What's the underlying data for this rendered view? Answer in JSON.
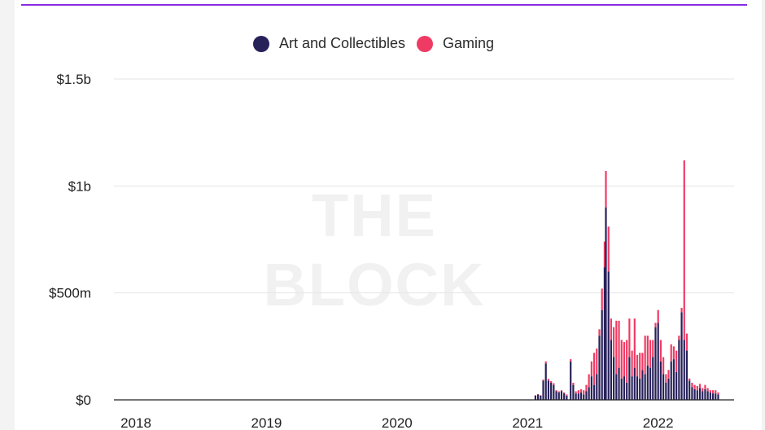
{
  "colors": {
    "accent_rule": "#8a2be2",
    "art": "#27215a",
    "gaming": "#ef3b64",
    "grid": "#e6e6e6",
    "watermark": "#f1f1f1"
  },
  "watermark_text": "THE BLOCK",
  "chart_data": {
    "type": "bar",
    "stacked": true,
    "legend_position": "top-center",
    "grid": true,
    "x_unit": "week",
    "xlim": [
      2018,
      2022.75
    ],
    "x_ticks": [
      "2018",
      "2019",
      "2020",
      "2021",
      "2022"
    ],
    "y_ticks": [
      "$0",
      "$500m",
      "$1b",
      "$1.5b"
    ],
    "ylim": [
      0,
      1500000000
    ],
    "series": [
      {
        "name": "Art and Collectibles",
        "color": "#27215a",
        "points": [
          [
            2021.06,
            20000000
          ],
          [
            2021.08,
            25000000
          ],
          [
            2021.1,
            20000000
          ],
          [
            2021.12,
            90000000
          ],
          [
            2021.14,
            170000000
          ],
          [
            2021.16,
            90000000
          ],
          [
            2021.18,
            80000000
          ],
          [
            2021.2,
            70000000
          ],
          [
            2021.22,
            40000000
          ],
          [
            2021.24,
            35000000
          ],
          [
            2021.26,
            40000000
          ],
          [
            2021.28,
            30000000
          ],
          [
            2021.3,
            20000000
          ],
          [
            2021.33,
            180000000
          ],
          [
            2021.35,
            70000000
          ],
          [
            2021.37,
            30000000
          ],
          [
            2021.39,
            30000000
          ],
          [
            2021.41,
            35000000
          ],
          [
            2021.43,
            25000000
          ],
          [
            2021.45,
            40000000
          ],
          [
            2021.47,
            60000000
          ],
          [
            2021.49,
            110000000
          ],
          [
            2021.51,
            70000000
          ],
          [
            2021.53,
            120000000
          ],
          [
            2021.55,
            300000000
          ],
          [
            2021.57,
            420000000
          ],
          [
            2021.59,
            620000000
          ],
          [
            2021.6,
            900000000
          ],
          [
            2021.62,
            600000000
          ],
          [
            2021.64,
            280000000
          ],
          [
            2021.66,
            200000000
          ],
          [
            2021.68,
            120000000
          ],
          [
            2021.7,
            150000000
          ],
          [
            2021.72,
            100000000
          ],
          [
            2021.74,
            110000000
          ],
          [
            2021.76,
            80000000
          ],
          [
            2021.78,
            200000000
          ],
          [
            2021.8,
            110000000
          ],
          [
            2021.82,
            150000000
          ],
          [
            2021.84,
            110000000
          ],
          [
            2021.86,
            100000000
          ],
          [
            2021.88,
            140000000
          ],
          [
            2021.9,
            120000000
          ],
          [
            2021.92,
            160000000
          ],
          [
            2021.94,
            150000000
          ],
          [
            2021.96,
            200000000
          ],
          [
            2021.98,
            340000000
          ],
          [
            2022.0,
            360000000
          ],
          [
            2022.02,
            180000000
          ],
          [
            2022.04,
            120000000
          ],
          [
            2022.06,
            80000000
          ],
          [
            2022.08,
            100000000
          ],
          [
            2022.1,
            180000000
          ],
          [
            2022.12,
            190000000
          ],
          [
            2022.14,
            130000000
          ],
          [
            2022.16,
            280000000
          ],
          [
            2022.18,
            410000000
          ],
          [
            2022.2,
            280000000
          ],
          [
            2022.22,
            230000000
          ],
          [
            2022.24,
            90000000
          ],
          [
            2022.26,
            60000000
          ],
          [
            2022.28,
            50000000
          ],
          [
            2022.3,
            45000000
          ],
          [
            2022.32,
            55000000
          ],
          [
            2022.34,
            40000000
          ],
          [
            2022.36,
            50000000
          ],
          [
            2022.38,
            40000000
          ],
          [
            2022.4,
            35000000
          ],
          [
            2022.42,
            30000000
          ],
          [
            2022.44,
            30000000
          ],
          [
            2022.46,
            25000000
          ]
        ]
      },
      {
        "name": "Gaming",
        "color": "#ef3b64",
        "points": [
          [
            2021.06,
            2000000
          ],
          [
            2021.08,
            2000000
          ],
          [
            2021.1,
            2000000
          ],
          [
            2021.12,
            5000000
          ],
          [
            2021.14,
            10000000
          ],
          [
            2021.16,
            8000000
          ],
          [
            2021.18,
            8000000
          ],
          [
            2021.2,
            8000000
          ],
          [
            2021.22,
            5000000
          ],
          [
            2021.24,
            5000000
          ],
          [
            2021.26,
            5000000
          ],
          [
            2021.28,
            5000000
          ],
          [
            2021.3,
            5000000
          ],
          [
            2021.33,
            10000000
          ],
          [
            2021.35,
            10000000
          ],
          [
            2021.37,
            10000000
          ],
          [
            2021.39,
            15000000
          ],
          [
            2021.41,
            15000000
          ],
          [
            2021.43,
            20000000
          ],
          [
            2021.45,
            30000000
          ],
          [
            2021.47,
            60000000
          ],
          [
            2021.49,
            70000000
          ],
          [
            2021.51,
            150000000
          ],
          [
            2021.53,
            120000000
          ],
          [
            2021.55,
            30000000
          ],
          [
            2021.57,
            100000000
          ],
          [
            2021.59,
            120000000
          ],
          [
            2021.6,
            170000000
          ],
          [
            2021.62,
            210000000
          ],
          [
            2021.64,
            100000000
          ],
          [
            2021.66,
            140000000
          ],
          [
            2021.68,
            250000000
          ],
          [
            2021.7,
            220000000
          ],
          [
            2021.72,
            180000000
          ],
          [
            2021.74,
            160000000
          ],
          [
            2021.76,
            200000000
          ],
          [
            2021.78,
            180000000
          ],
          [
            2021.8,
            120000000
          ],
          [
            2021.82,
            230000000
          ],
          [
            2021.84,
            100000000
          ],
          [
            2021.86,
            120000000
          ],
          [
            2021.88,
            80000000
          ],
          [
            2021.9,
            180000000
          ],
          [
            2021.92,
            140000000
          ],
          [
            2021.94,
            130000000
          ],
          [
            2021.96,
            80000000
          ],
          [
            2021.98,
            20000000
          ],
          [
            2022.0,
            60000000
          ],
          [
            2022.02,
            100000000
          ],
          [
            2022.04,
            80000000
          ],
          [
            2022.06,
            40000000
          ],
          [
            2022.08,
            40000000
          ],
          [
            2022.1,
            80000000
          ],
          [
            2022.12,
            60000000
          ],
          [
            2022.14,
            100000000
          ],
          [
            2022.16,
            20000000
          ],
          [
            2022.18,
            20000000
          ],
          [
            2022.2,
            840000000
          ],
          [
            2022.22,
            80000000
          ],
          [
            2022.24,
            10000000
          ],
          [
            2022.26,
            20000000
          ],
          [
            2022.28,
            20000000
          ],
          [
            2022.3,
            20000000
          ],
          [
            2022.32,
            20000000
          ],
          [
            2022.34,
            15000000
          ],
          [
            2022.36,
            20000000
          ],
          [
            2022.38,
            15000000
          ],
          [
            2022.4,
            10000000
          ],
          [
            2022.42,
            15000000
          ],
          [
            2022.44,
            15000000
          ],
          [
            2022.46,
            10000000
          ]
        ]
      }
    ]
  }
}
